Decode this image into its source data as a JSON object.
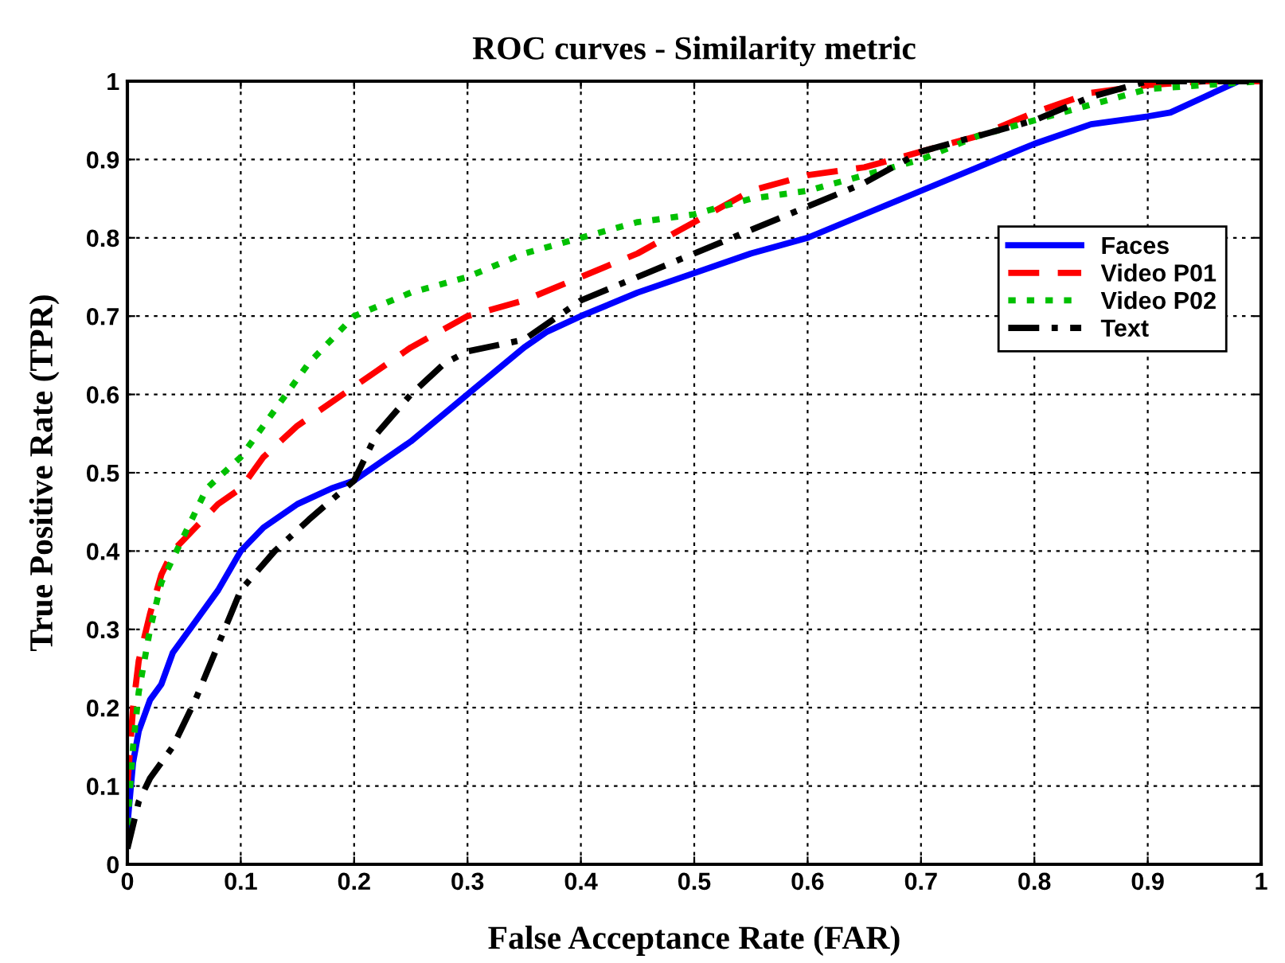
{
  "chart_data": {
    "type": "line",
    "title": "ROC curves - Similarity metric",
    "xlabel": "False Acceptance Rate (FAR)",
    "ylabel": "True Positive Rate (TPR)",
    "xlim": [
      0,
      1
    ],
    "ylim": [
      0,
      1
    ],
    "xticks": [
      0,
      0.1,
      0.2,
      0.3,
      0.4,
      0.5,
      0.6,
      0.7,
      0.8,
      0.9,
      1
    ],
    "yticks": [
      0,
      0.1,
      0.2,
      0.3,
      0.4,
      0.5,
      0.6,
      0.7,
      0.8,
      0.9,
      1
    ],
    "grid": true,
    "legend": "top right",
    "series": [
      {
        "name": "Faces",
        "color": "#0000ff",
        "line_style": "solid",
        "x": [
          0,
          0.005,
          0.01,
          0.02,
          0.03,
          0.04,
          0.06,
          0.08,
          0.1,
          0.12,
          0.15,
          0.18,
          0.2,
          0.25,
          0.3,
          0.35,
          0.37,
          0.4,
          0.45,
          0.5,
          0.55,
          0.6,
          0.65,
          0.7,
          0.75,
          0.8,
          0.85,
          0.9,
          0.92,
          0.95,
          0.98
        ],
        "values": [
          0.05,
          0.13,
          0.17,
          0.21,
          0.23,
          0.27,
          0.31,
          0.35,
          0.4,
          0.43,
          0.46,
          0.48,
          0.49,
          0.54,
          0.6,
          0.66,
          0.68,
          0.7,
          0.73,
          0.755,
          0.78,
          0.8,
          0.83,
          0.86,
          0.89,
          0.92,
          0.945,
          0.955,
          0.96,
          0.98,
          1
        ]
      },
      {
        "name": "Video P01",
        "color": "#ff0000",
        "line_style": "dashed",
        "x": [
          0,
          0.005,
          0.01,
          0.02,
          0.03,
          0.04,
          0.06,
          0.08,
          0.1,
          0.12,
          0.15,
          0.2,
          0.22,
          0.25,
          0.3,
          0.35,
          0.4,
          0.45,
          0.5,
          0.55,
          0.6,
          0.65,
          0.7,
          0.75,
          0.8,
          0.85,
          0.9,
          0.95,
          1
        ],
        "values": [
          0.1,
          0.2,
          0.26,
          0.32,
          0.37,
          0.4,
          0.43,
          0.46,
          0.48,
          0.52,
          0.56,
          0.61,
          0.63,
          0.66,
          0.7,
          0.72,
          0.75,
          0.78,
          0.82,
          0.86,
          0.88,
          0.89,
          0.91,
          0.93,
          0.96,
          0.985,
          0.995,
          1,
          1
        ]
      },
      {
        "name": "Video P02",
        "color": "#00c000",
        "line_style": "dotted",
        "x": [
          0,
          0.005,
          0.01,
          0.02,
          0.03,
          0.05,
          0.07,
          0.1,
          0.13,
          0.16,
          0.2,
          0.25,
          0.3,
          0.35,
          0.4,
          0.45,
          0.5,
          0.55,
          0.6,
          0.65,
          0.7,
          0.75,
          0.8,
          0.85,
          0.9,
          1
        ],
        "values": [
          0.05,
          0.15,
          0.22,
          0.3,
          0.36,
          0.42,
          0.48,
          0.52,
          0.58,
          0.64,
          0.7,
          0.73,
          0.75,
          0.78,
          0.8,
          0.82,
          0.83,
          0.85,
          0.86,
          0.88,
          0.9,
          0.93,
          0.95,
          0.97,
          0.99,
          1
        ]
      },
      {
        "name": "Text",
        "color": "#000000",
        "line_style": "dashdot",
        "x": [
          0,
          0.005,
          0.01,
          0.02,
          0.04,
          0.06,
          0.08,
          0.1,
          0.13,
          0.16,
          0.2,
          0.22,
          0.25,
          0.28,
          0.3,
          0.35,
          0.4,
          0.45,
          0.5,
          0.55,
          0.6,
          0.65,
          0.7,
          0.75,
          0.8,
          0.85,
          0.9,
          1
        ],
        "values": [
          0.02,
          0.05,
          0.08,
          0.11,
          0.15,
          0.21,
          0.28,
          0.35,
          0.4,
          0.44,
          0.49,
          0.55,
          0.6,
          0.64,
          0.655,
          0.67,
          0.72,
          0.75,
          0.78,
          0.81,
          0.84,
          0.87,
          0.91,
          0.93,
          0.95,
          0.98,
          1,
          1
        ]
      }
    ]
  }
}
